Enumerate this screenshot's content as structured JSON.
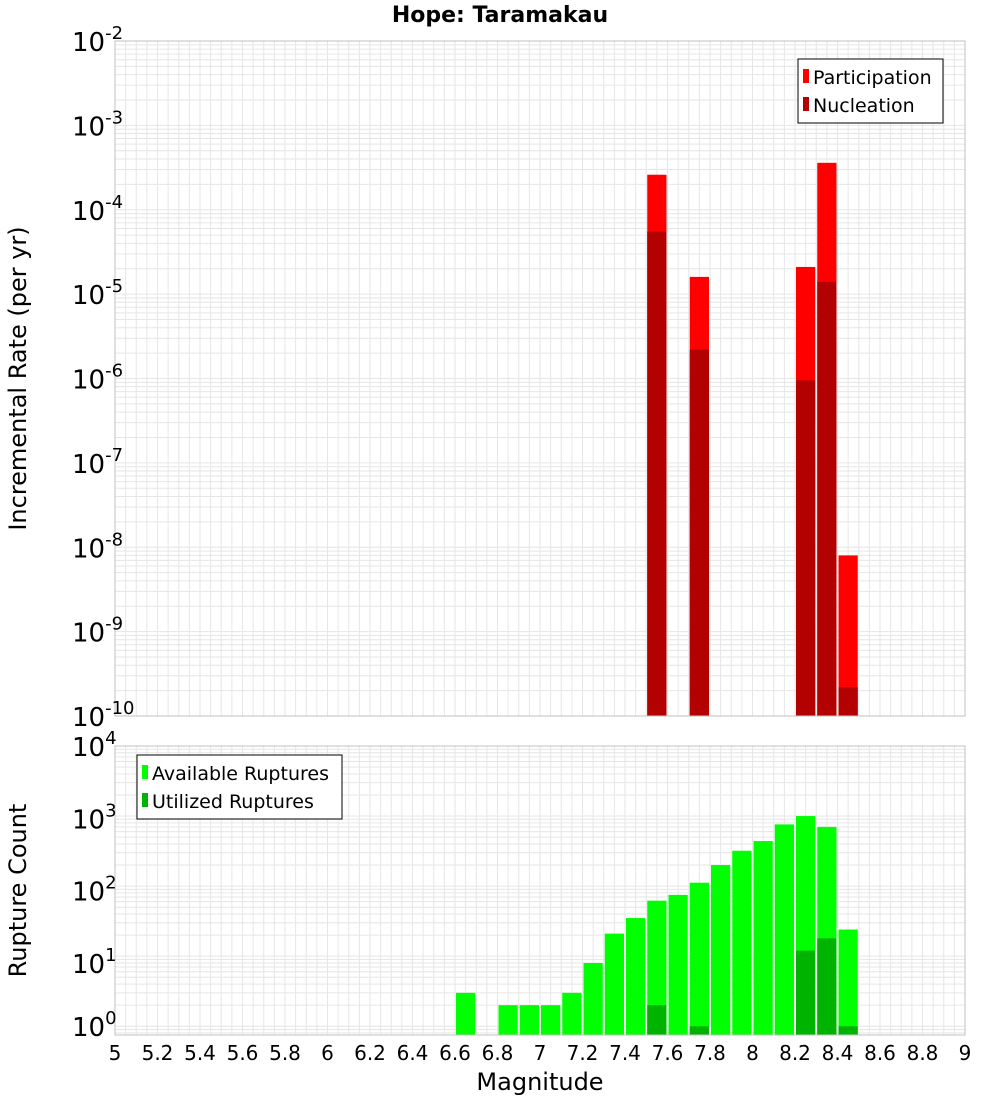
{
  "title": "Hope: Taramakau",
  "xlabel": "Magnitude",
  "colors": {
    "participation": "#ff0000",
    "nucleation": "#b30000",
    "available": "#00ff00",
    "utilized": "#00b300",
    "grid": "#e6e6e6",
    "frame": "#c0c0c0"
  },
  "x_ticks": [
    "5",
    "5.2",
    "5.4",
    "5.6",
    "5.8",
    "6",
    "6.2",
    "6.4",
    "6.6",
    "6.8",
    "7",
    "7.2",
    "7.4",
    "7.6",
    "7.8",
    "8",
    "8.2",
    "8.4",
    "8.6",
    "8.8",
    "9"
  ],
  "chart_data": [
    {
      "type": "bar",
      "title": "Hope: Taramakau",
      "ylabel": "Incremental Rate (per yr)",
      "yscale": "log",
      "xlim": [
        5,
        9
      ],
      "ylim": [
        1e-10,
        0.01
      ],
      "y_ticks": [
        {
          "base": "10",
          "exp": "-10"
        },
        {
          "base": "10",
          "exp": "-9"
        },
        {
          "base": "10",
          "exp": "-8"
        },
        {
          "base": "10",
          "exp": "-7"
        },
        {
          "base": "10",
          "exp": "-6"
        },
        {
          "base": "10",
          "exp": "-5"
        },
        {
          "base": "10",
          "exp": "-4"
        },
        {
          "base": "10",
          "exp": "-3"
        },
        {
          "base": "10",
          "exp": "-2"
        }
      ],
      "legend_position": "top-right",
      "legend": [
        "Participation",
        "Nucleation"
      ],
      "bar_width": 0.1,
      "series": [
        {
          "name": "Participation",
          "color": "#ff0000",
          "x": [
            7.55,
            7.75,
            8.25,
            8.35,
            8.45
          ],
          "values": [
            0.00026,
            1.6e-05,
            2.1e-05,
            0.00036,
            8e-09
          ]
        },
        {
          "name": "Nucleation",
          "color": "#b30000",
          "x": [
            7.55,
            7.75,
            8.25,
            8.35,
            8.45
          ],
          "values": [
            5.5e-05,
            2.2e-06,
            9.5e-07,
            1.4e-05,
            2.2e-10
          ]
        }
      ]
    },
    {
      "type": "bar",
      "xlabel": "Magnitude",
      "ylabel": "Rupture Count",
      "yscale": "log",
      "xlim": [
        5,
        9
      ],
      "ylim": [
        0.75,
        10000
      ],
      "y_ticks": [
        {
          "base": "10",
          "exp": "0"
        },
        {
          "base": "10",
          "exp": "1"
        },
        {
          "base": "10",
          "exp": "2"
        },
        {
          "base": "10",
          "exp": "3"
        },
        {
          "base": "10",
          "exp": "4"
        }
      ],
      "legend_position": "top-left",
      "legend": [
        "Available Ruptures",
        "Utilized Ruptures"
      ],
      "bar_width": 0.1,
      "series": [
        {
          "name": "Available Ruptures",
          "color": "#00ff00",
          "x": [
            6.65,
            6.85,
            6.95,
            7.05,
            7.15,
            7.25,
            7.35,
            7.45,
            7.55,
            7.65,
            7.75,
            7.85,
            7.95,
            8.05,
            8.15,
            8.25,
            8.35,
            8.45
          ],
          "values": [
            3,
            2,
            2,
            2,
            3,
            8,
            21,
            35,
            62,
            75,
            112,
            200,
            320,
            440,
            760,
            1000,
            700,
            24
          ]
        },
        {
          "name": "Utilized Ruptures",
          "color": "#00b300",
          "x": [
            7.55,
            7.75,
            8.25,
            8.35,
            8.45
          ],
          "values": [
            2,
            1,
            12,
            18,
            1
          ]
        }
      ]
    }
  ]
}
